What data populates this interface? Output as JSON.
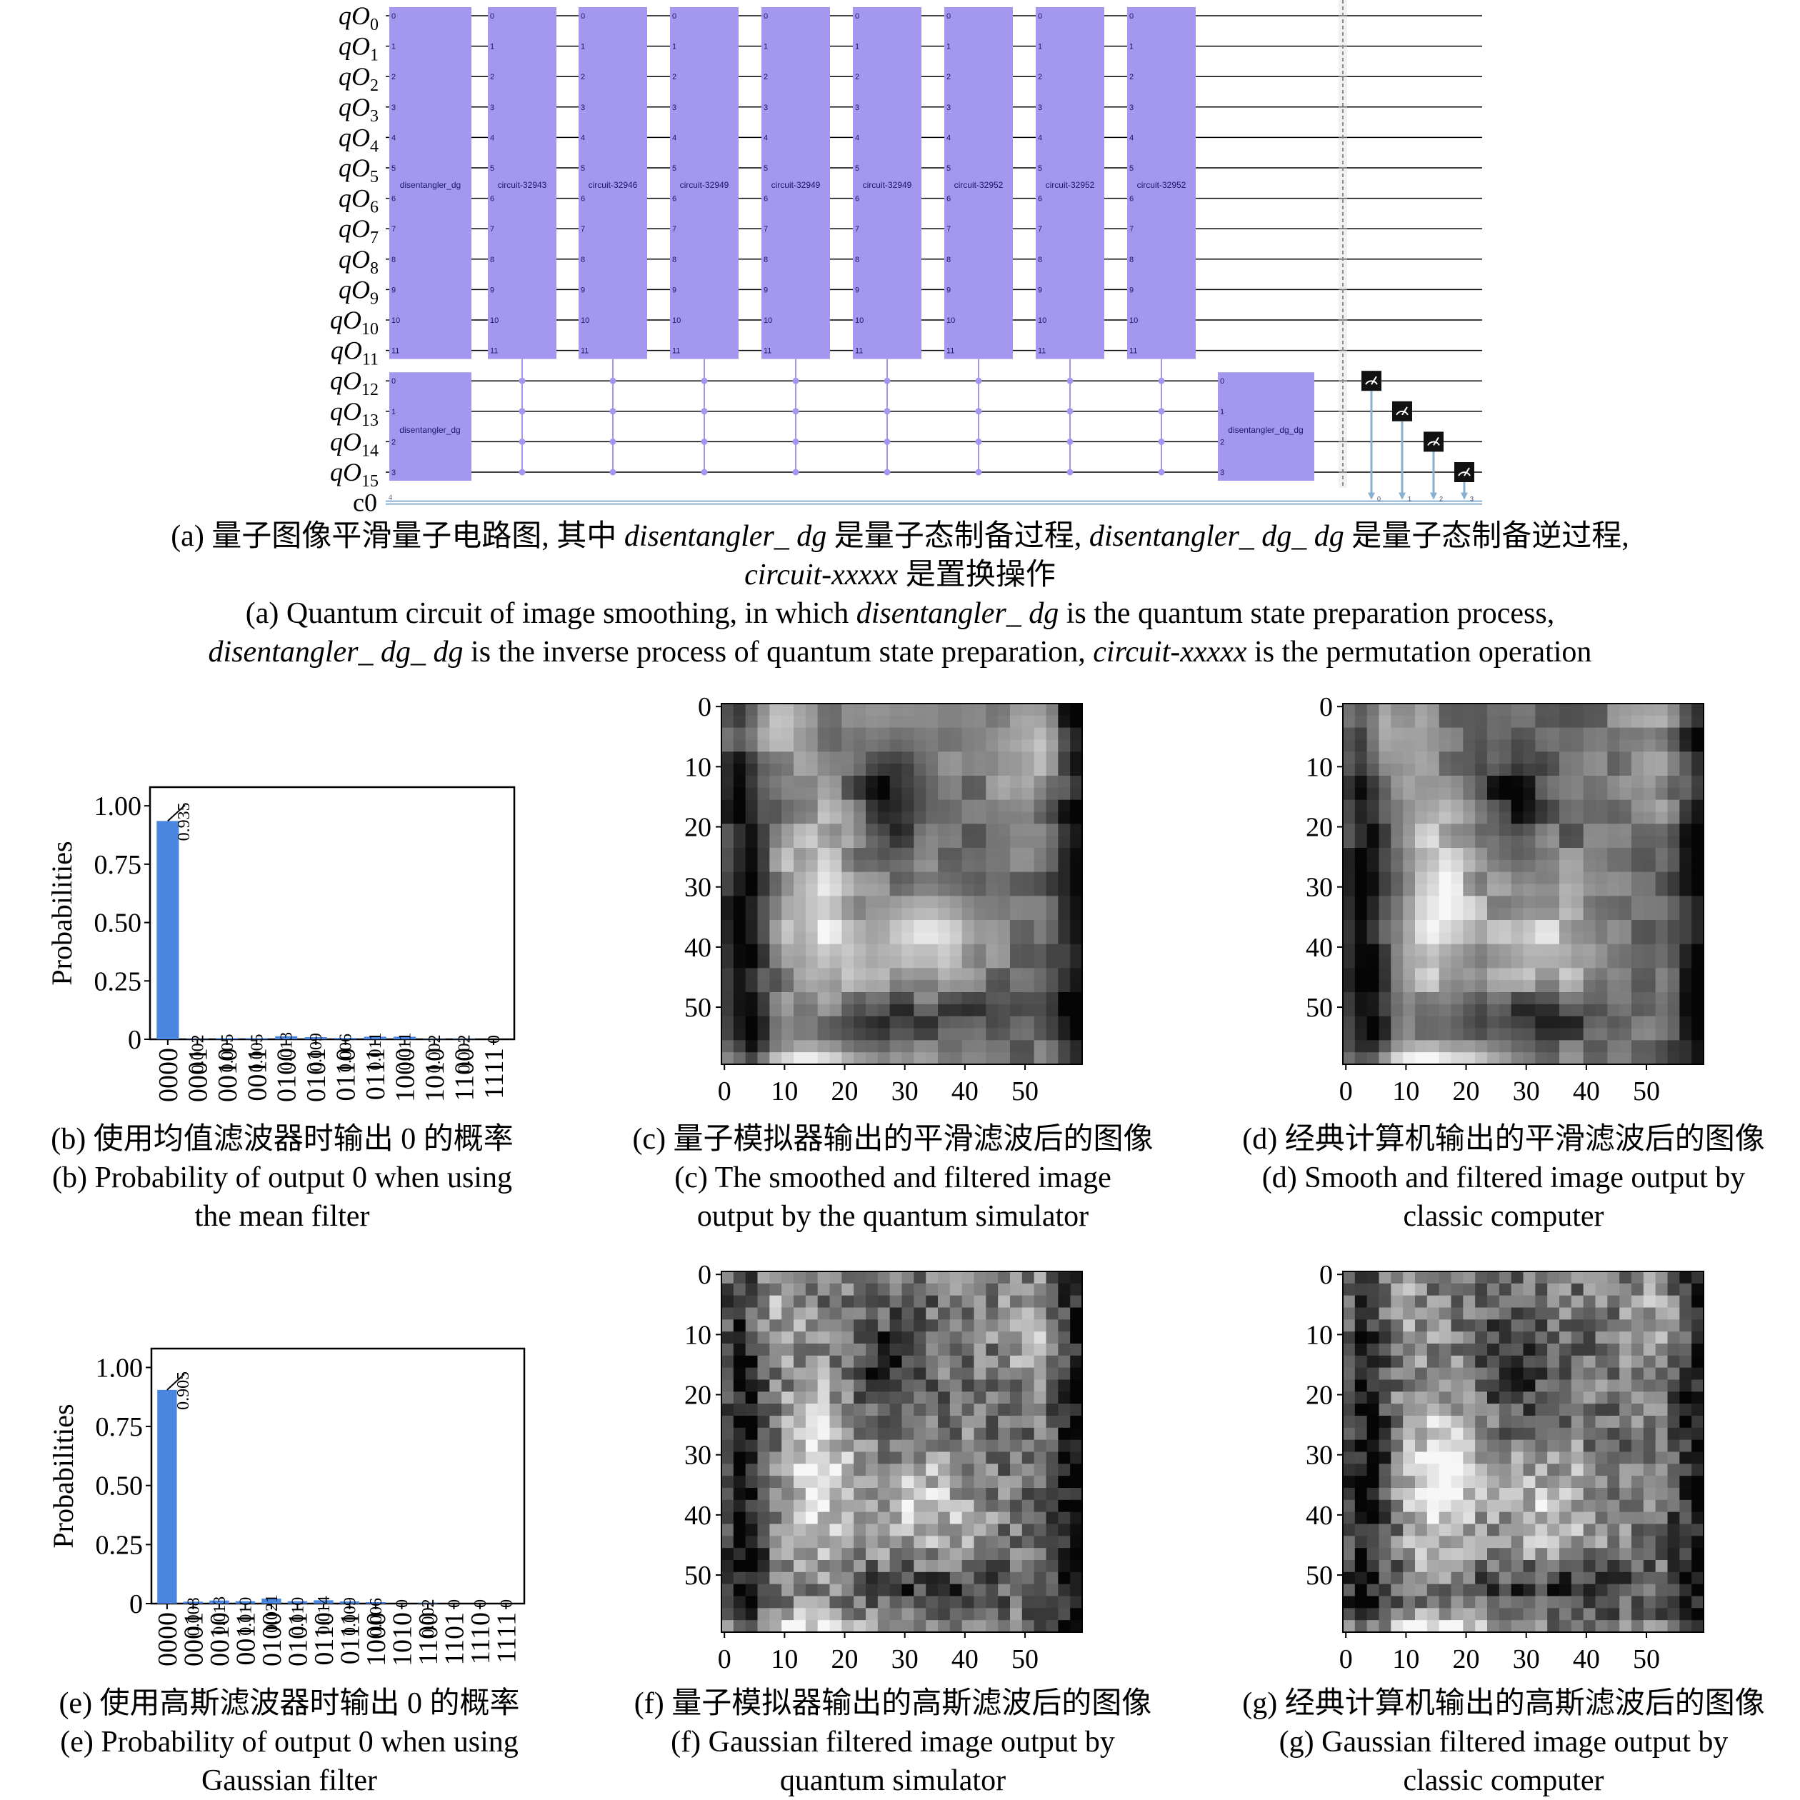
{
  "circuit": {
    "qubits": [
      "0",
      "1",
      "2",
      "3",
      "4",
      "5",
      "6",
      "7",
      "8",
      "9",
      "10",
      "11",
      "12",
      "13",
      "14",
      "15"
    ],
    "qubit_prefix": "qO",
    "classical_label": "c0",
    "classical_count": "4",
    "gate_color": "#a497f0",
    "top_gates": [
      {
        "label": "disentangler_dg"
      },
      {
        "label": "circuit-32943"
      },
      {
        "label": "circuit-32946"
      },
      {
        "label": "circuit-32949"
      },
      {
        "label": "circuit-32949"
      },
      {
        "label": "circuit-32949"
      },
      {
        "label": "circuit-32952"
      },
      {
        "label": "circuit-32952"
      },
      {
        "label": "circuit-32952"
      }
    ],
    "bottom_left_gate": "disentangler_dg",
    "bottom_right_gate": "disentangler_dg_dg",
    "measure_icon": "meter-icon",
    "measure_targets": [
      "0",
      "1",
      "2",
      "3"
    ]
  },
  "captions": {
    "a_cn_prefix": "(a) 量子图像平滑量子电路图, 其中 ",
    "a_cn_t1": "disentangler_ dg",
    "a_cn_mid": " 是量子态制备过程, ",
    "a_cn_t2": "disentangler_ dg_ dg",
    "a_cn_suffix": " 是量子态制备逆过程,",
    "a_cn_line2_t": "circuit-xxxxx",
    "a_cn_line2": " 是置换操作",
    "a_en_prefix": "(a) Quantum circuit of image smoothing, in which ",
    "a_en_t1": "disentangler_ dg",
    "a_en_mid": " is the quantum state preparation process,",
    "a_en_line2_t1": "disentangler_ dg_ dg",
    "a_en_line2_mid": " is the inverse process of quantum state preparation, ",
    "a_en_line2_t2": "circuit-xxxxx",
    "a_en_line2_suffix": " is the permutation operation",
    "b_cn": "(b) 使用均值滤波器时输出 0 的概率",
    "b_en1": "(b) Probability of output 0 when using",
    "b_en2": "the mean filter",
    "c_cn": "(c) 量子模拟器输出的平滑滤波后的图像",
    "c_en1": "(c) The smoothed and filtered image",
    "c_en2": "output by the quantum simulator",
    "d_cn": "(d) 经典计算机输出的平滑滤波后的图像",
    "d_en1": "(d) Smooth and filtered image output by",
    "d_en2": "classic computer",
    "e_cn": "(e) 使用高斯滤波器时输出 0 的概率",
    "e_en1": "(e) Probability of output 0 when using",
    "e_en2": "Gaussian filter",
    "f_cn": "(f) 量子模拟器输出的高斯滤波后的图像",
    "f_en1": "(f) Gaussian filtered image output by",
    "f_en2": "quantum simulator",
    "g_cn": "(g) 经典计算机输出的高斯滤波后的图像",
    "g_en1": "(g) Gaussian filtered image output by",
    "g_en2": "classic computer"
  },
  "chart_data": [
    {
      "type": "bar",
      "ylabel": "Probabilities",
      "ylim": [
        0,
        1.08
      ],
      "yticks": [
        "0",
        "0.25",
        "0.50",
        "0.75",
        "1.00"
      ],
      "categories": [
        "0000",
        "0001",
        "0010",
        "0011",
        "0100",
        "0101",
        "0110",
        "0111",
        "1000",
        "1010",
        "1100",
        "1111"
      ],
      "values": [
        0.935,
        0.002,
        0.005,
        0.005,
        0.013,
        0.009,
        0.006,
        0.011,
        0.011,
        0.002,
        0.002,
        0
      ],
      "labels": [
        "0.935",
        "0.002",
        "0.005",
        "0.005",
        "0.013",
        "0.009",
        "0.006",
        "0.011",
        "0.011",
        "0.002",
        "0.002",
        "0"
      ],
      "bar_color": "#4a86e0"
    },
    {
      "type": "bar",
      "ylabel": "Probabilities",
      "ylim": [
        0,
        1.08
      ],
      "yticks": [
        "0",
        "0.25",
        "0.50",
        "0.75",
        "1.00"
      ],
      "categories": [
        "0000",
        "0001",
        "0010",
        "0011",
        "0100",
        "0101",
        "0110",
        "0111",
        "1000",
        "1010",
        "1100",
        "1101",
        "1110",
        "1111"
      ],
      "values": [
        0.905,
        0.008,
        0.013,
        0.01,
        0.021,
        0.01,
        0.014,
        0.009,
        0.006,
        0,
        0.002,
        0,
        0,
        0
      ],
      "labels": [
        "0.905",
        "0.008",
        "0.013",
        "0.010",
        "0.021",
        "0.010",
        "0.014",
        "0.009",
        "0.006",
        "0",
        "0.002",
        "0",
        "0",
        "0"
      ],
      "bar_color": "#4a86e0"
    },
    {
      "type": "heatmap",
      "description_id": "c",
      "xticks": [
        "0",
        "10",
        "20",
        "30",
        "40",
        "50"
      ],
      "yticks": [
        "0",
        "10",
        "20",
        "30",
        "40",
        "50"
      ],
      "grid_size": 60,
      "colormap": "gray"
    },
    {
      "type": "heatmap",
      "description_id": "d",
      "xticks": [
        "0",
        "10",
        "20",
        "30",
        "40",
        "50"
      ],
      "yticks": [
        "0",
        "10",
        "20",
        "30",
        "40",
        "50"
      ],
      "grid_size": 60,
      "colormap": "gray"
    },
    {
      "type": "heatmap",
      "description_id": "f",
      "xticks": [
        "0",
        "10",
        "20",
        "30",
        "40",
        "50"
      ],
      "yticks": [
        "0",
        "10",
        "20",
        "30",
        "40",
        "50"
      ],
      "grid_size": 60,
      "colormap": "gray"
    },
    {
      "type": "heatmap",
      "description_id": "g",
      "xticks": [
        "0",
        "10",
        "20",
        "30",
        "40",
        "50"
      ],
      "yticks": [
        "0",
        "10",
        "20",
        "30",
        "40",
        "50"
      ],
      "grid_size": 60,
      "colormap": "gray"
    }
  ]
}
